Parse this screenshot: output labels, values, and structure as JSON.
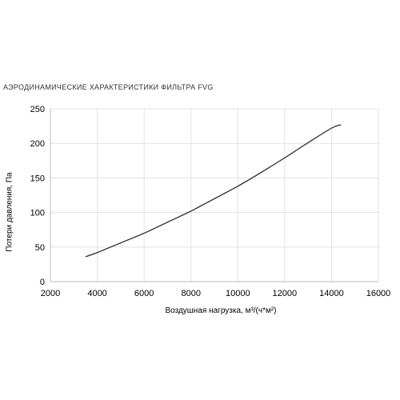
{
  "chart_data": {
    "type": "line",
    "title": "АЭРОДИНАМИЧЕСКИЕ ХАРАКТЕРИСТИКИ ФИЛЬТРА FVG",
    "xlabel": "Воздушная нагрузка, м³/(ч*м²)",
    "ylabel": "Потери давления, Па",
    "xlim": [
      2000,
      16000
    ],
    "ylim": [
      0,
      250
    ],
    "x_ticks": [
      "2000",
      "4000",
      "6000",
      "8000",
      "10000",
      "12000",
      "14000",
      "16000"
    ],
    "y_ticks": [
      "0",
      "50",
      "100",
      "150",
      "200",
      "250"
    ],
    "grid": true,
    "series": [
      {
        "color": "#3a3a3a",
        "x": [
          3500,
          4000,
          5000,
          6000,
          7000,
          8000,
          9000,
          10000,
          11000,
          12000,
          13000,
          14000,
          14400
        ],
        "y": [
          36,
          42,
          56,
          70,
          86,
          102,
          120,
          138,
          158,
          179,
          201,
          222,
          227
        ]
      }
    ]
  }
}
